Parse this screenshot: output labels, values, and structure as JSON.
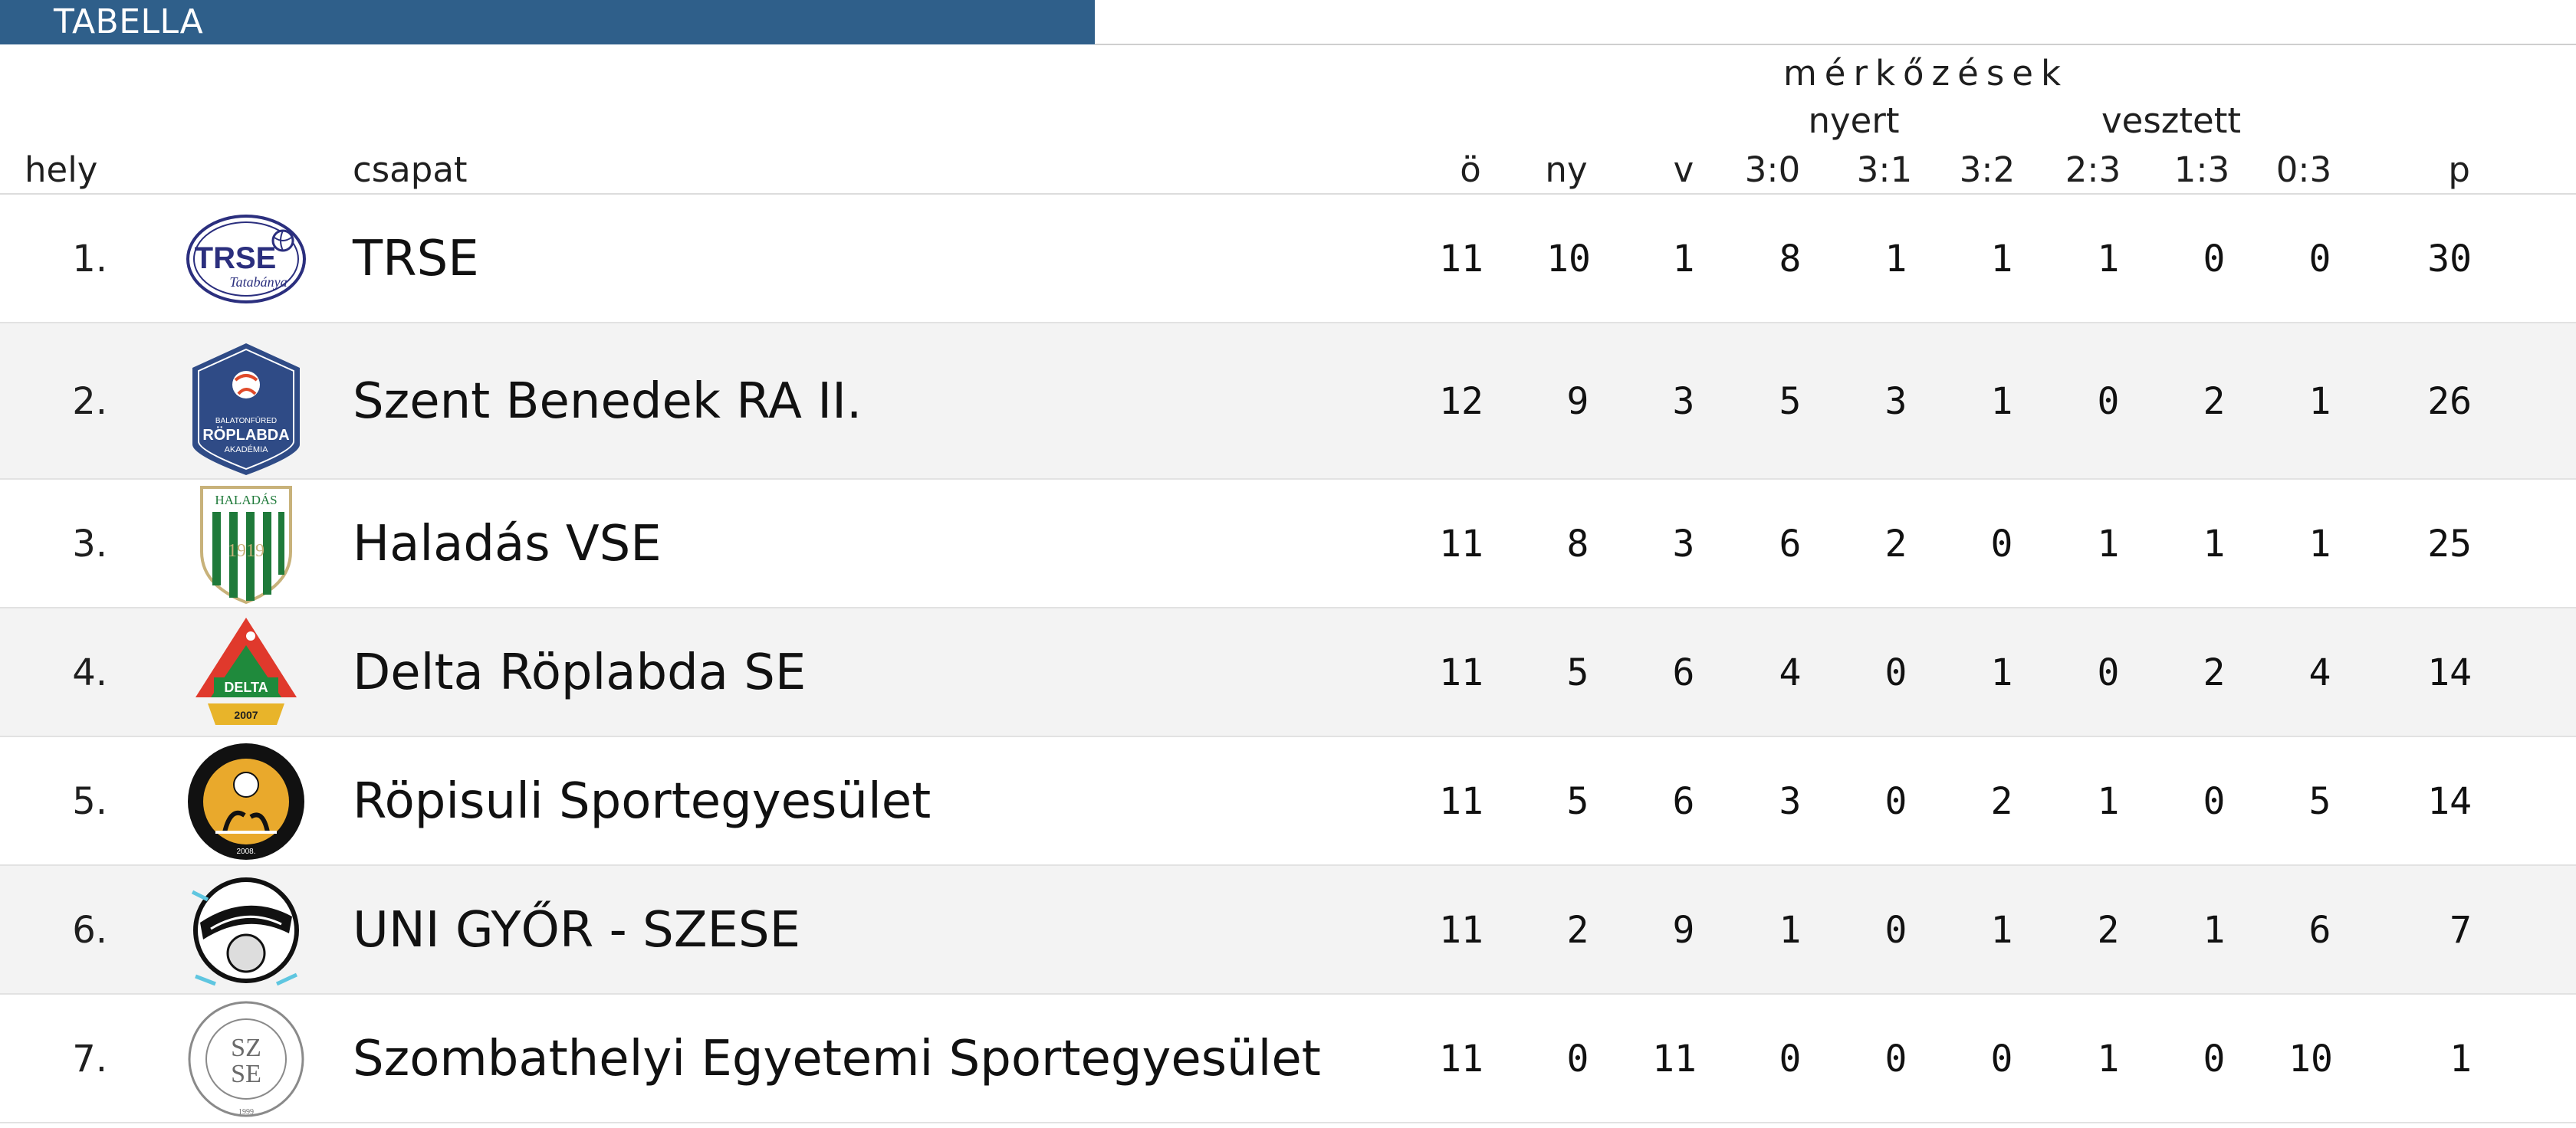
{
  "header": {
    "title": "TABELLA"
  },
  "columns": {
    "group_label": "mérkőzések",
    "won_label": "nyert",
    "lost_label": "vesztett",
    "rank": "hely",
    "team": "csapat",
    "played": "ö",
    "wins": "ny",
    "losses": "v",
    "s30": "3:0",
    "s31": "3:1",
    "s32": "3:2",
    "s23": "2:3",
    "s13": "1:3",
    "s03": "0:3",
    "points": "p"
  },
  "rows": [
    {
      "rank": "1.",
      "team": "TRSE",
      "logo": "trse-logo",
      "played": "11",
      "wins": "10",
      "losses": "1",
      "s30": "8",
      "s31": "1",
      "s32": "1",
      "s23": "1",
      "s13": "0",
      "s03": "0",
      "points": "30"
    },
    {
      "rank": "2.",
      "team": "Szent Benedek RA II.",
      "logo": "szent-benedek-logo",
      "logo_text": "RÖPLABDA",
      "played": "12",
      "wins": "9",
      "losses": "3",
      "s30": "5",
      "s31": "3",
      "s32": "1",
      "s23": "0",
      "s13": "2",
      "s03": "1",
      "points": "26"
    },
    {
      "rank": "3.",
      "team": "Haladás VSE",
      "logo": "haladas-logo",
      "logo_text": "HALADÁS",
      "played": "11",
      "wins": "8",
      "losses": "3",
      "s30": "6",
      "s31": "2",
      "s32": "0",
      "s23": "1",
      "s13": "1",
      "s03": "1",
      "points": "25"
    },
    {
      "rank": "4.",
      "team": "Delta Röplabda SE",
      "logo": "delta-logo",
      "logo_text": "DELTA",
      "played": "11",
      "wins": "5",
      "losses": "6",
      "s30": "4",
      "s31": "0",
      "s32": "1",
      "s23": "0",
      "s13": "2",
      "s03": "4",
      "points": "14"
    },
    {
      "rank": "5.",
      "team": "Röpisuli Sportegyesület",
      "logo": "ropisuli-logo",
      "played": "11",
      "wins": "5",
      "losses": "6",
      "s30": "3",
      "s31": "0",
      "s32": "2",
      "s23": "1",
      "s13": "0",
      "s03": "5",
      "points": "14"
    },
    {
      "rank": "6.",
      "team": "UNI GYŐR - SZESE",
      "logo": "uni-gyor-logo",
      "played": "11",
      "wins": "2",
      "losses": "9",
      "s30": "1",
      "s31": "0",
      "s32": "1",
      "s23": "2",
      "s13": "1",
      "s03": "6",
      "points": "7"
    },
    {
      "rank": "7.",
      "team": "Szombathelyi Egyetemi Sportegyesület",
      "logo": "szese-logo",
      "played": "11",
      "wins": "0",
      "losses": "11",
      "s30": "0",
      "s31": "0",
      "s32": "0",
      "s23": "1",
      "s13": "0",
      "s03": "10",
      "points": "1"
    }
  ],
  "colors": {
    "header_bg": "#2f5f8a",
    "row_alt_bg": "#f3f3f3"
  }
}
